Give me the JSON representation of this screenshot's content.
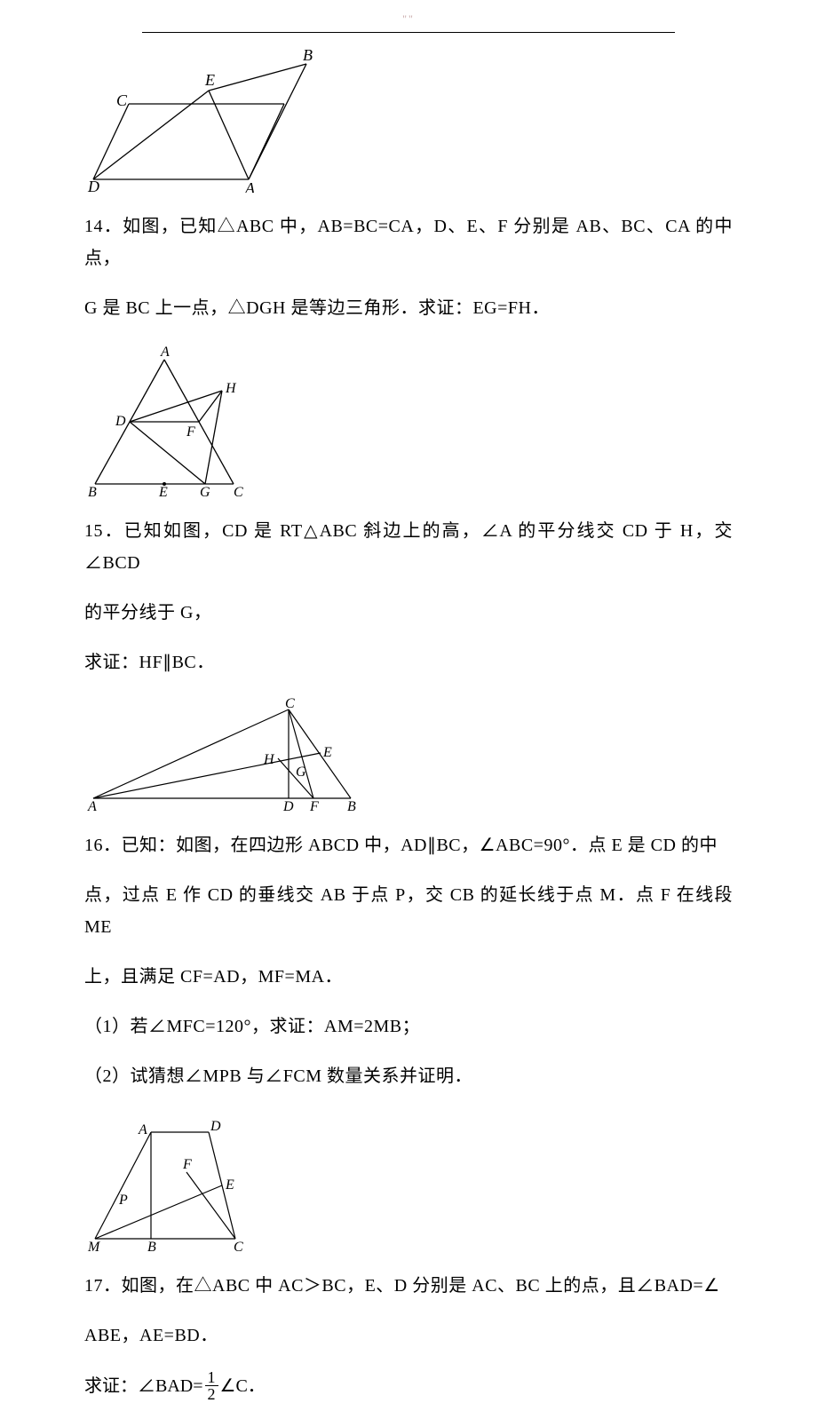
{
  "header_mark": "\"\"",
  "fig13": {
    "labels": {
      "B": "B",
      "E": "E",
      "C": "C",
      "D": "D",
      "A": "A"
    },
    "stroke": "#000000",
    "stroke_width": 1.3,
    "font_size": 18,
    "font_style": "italic",
    "font_family": "Times New Roman, serif"
  },
  "q14": {
    "line1": "14．如图，已知△ABC 中，AB=BC=CA，D、E、F 分别是 AB、BC、CA 的中点，",
    "line2": "G 是 BC 上一点，△DGH 是等边三角形．求证：EG=FH．"
  },
  "fig14": {
    "labels": {
      "A": "A",
      "H": "H",
      "D": "D",
      "F": "F",
      "B": "B",
      "E": "E",
      "G": "G",
      "C": "C"
    },
    "stroke": "#000000",
    "stroke_width": 1.3,
    "font_size": 16,
    "font_style": "italic",
    "font_family": "Times New Roman, serif"
  },
  "q15": {
    "line1": "15．已知如图，CD 是 RT△ABC 斜边上的高，∠A 的平分线交 CD 于 H，交∠BCD",
    "line2": "的平分线于 G，",
    "line3": "求证：HF∥BC．"
  },
  "fig15": {
    "labels": {
      "C": "C",
      "H": "H",
      "G": "G",
      "E": "E",
      "A": "A",
      "D": "D",
      "F": "F",
      "B": "B"
    },
    "stroke": "#000000",
    "stroke_width": 1.2,
    "font_size": 16,
    "font_style": "italic",
    "font_family": "Times New Roman, serif"
  },
  "q16": {
    "line1": "16．已知：如图，在四边形 ABCD 中，AD∥BC，∠ABC=90°．点 E 是 CD 的中",
    "line2": "点，过点 E 作 CD 的垂线交 AB 于点 P，交 CB 的延长线于点 M．点 F 在线段 ME",
    "line3": "上，且满足 CF=AD，MF=MA．",
    "line4": "（1）若∠MFC=120°，求证：AM=2MB；",
    "line5": "（2）试猜想∠MPB 与∠FCM 数量关系并证明．"
  },
  "fig16": {
    "labels": {
      "A": "A",
      "D": "D",
      "F": "F",
      "E": "E",
      "P": "P",
      "M": "M",
      "B": "B",
      "C": "C"
    },
    "stroke": "#000000",
    "stroke_width": 1.2,
    "font_size": 16,
    "font_style": "italic",
    "font_family": "Times New Roman, serif"
  },
  "q17": {
    "line1": "17．如图，在△ABC 中 AC＞BC，E、D 分别是 AC、BC 上的点，且∠BAD=∠",
    "line2": "ABE，AE=BD．",
    "line3_before": "求证：∠BAD=",
    "line3_num": "1",
    "line3_den": "2",
    "line3_after": "∠C．"
  }
}
